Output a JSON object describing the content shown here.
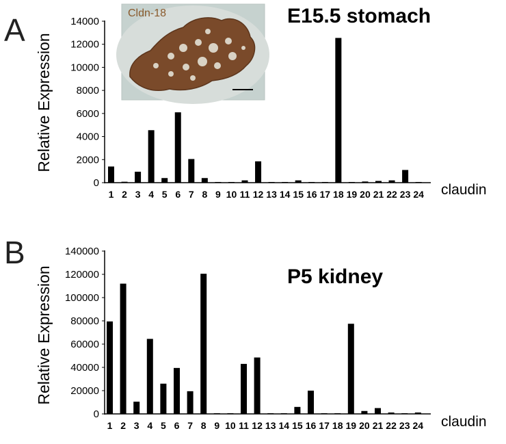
{
  "chart_data": [
    {
      "type": "bar",
      "panel": "A",
      "title": "E15.5 stomach",
      "ylabel": "Relative Expression",
      "xlabel": "claudin",
      "ylim": [
        0,
        14000
      ],
      "yticks": [
        "0",
        "2000",
        "4000",
        "6000",
        "8000",
        "10000",
        "12000",
        "14000"
      ],
      "categories": [
        "1",
        "2",
        "3",
        "4",
        "5",
        "6",
        "7",
        "8",
        "9",
        "10",
        "11",
        "12",
        "13",
        "14",
        "15",
        "16",
        "17",
        "18",
        "19",
        "20",
        "21",
        "22",
        "23",
        "24"
      ],
      "values": [
        1400,
        80,
        950,
        4550,
        400,
        6100,
        2050,
        400,
        60,
        60,
        200,
        1850,
        60,
        60,
        200,
        60,
        60,
        12550,
        60,
        100,
        150,
        200,
        1100,
        60
      ],
      "inset_label": "Cldn-18",
      "legend": "none",
      "grid": false
    },
    {
      "type": "bar",
      "panel": "B",
      "title": "P5 kidney",
      "ylabel": "Relative Expression",
      "xlabel": "claudin",
      "ylim": [
        0,
        140000
      ],
      "yticks": [
        "0",
        "20000",
        "40000",
        "60000",
        "80000",
        "100000",
        "120000",
        "140000"
      ],
      "categories": [
        "1",
        "2",
        "3",
        "4",
        "5",
        "6",
        "7",
        "8",
        "9",
        "10",
        "11",
        "12",
        "13",
        "14",
        "15",
        "16",
        "17",
        "18",
        "19",
        "20",
        "21",
        "22",
        "23",
        "24"
      ],
      "values": [
        79500,
        112000,
        10500,
        64500,
        26000,
        39500,
        19500,
        120500,
        600,
        600,
        43000,
        48500,
        600,
        600,
        6000,
        20000,
        600,
        600,
        77500,
        2500,
        5000,
        1200,
        600,
        1200
      ],
      "legend": "none",
      "grid": false
    }
  ]
}
